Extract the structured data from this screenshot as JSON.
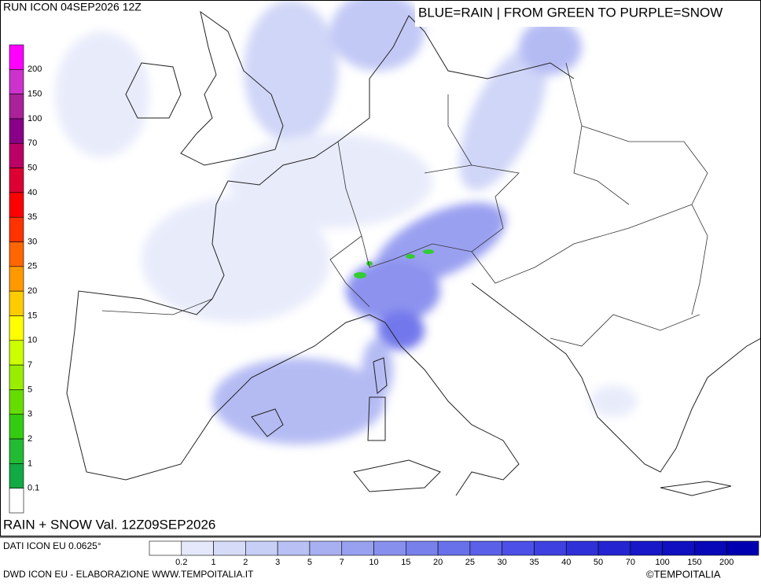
{
  "header": {
    "run": "RUN ICON 04SEP2026 12Z",
    "legend_title": "BLUE=RAIN | FROM GREEN TO PURPLE=SNOW",
    "field": "RAIN + SNOW Val. 12Z09SEP2026"
  },
  "snow_scale": {
    "labels": [
      200,
      150,
      100,
      70,
      50,
      40,
      35,
      30,
      25,
      20,
      15,
      10,
      7,
      5,
      3,
      2,
      1,
      0.1
    ],
    "colors": [
      "#ff00ff",
      "#cc33cc",
      "#aa2299",
      "#880088",
      "#bb0066",
      "#dd0033",
      "#ff0000",
      "#ff3300",
      "#ff6600",
      "#ff9900",
      "#ffcc00",
      "#ffff00",
      "#ccff00",
      "#99ee00",
      "#66dd00",
      "#33cc11",
      "#22bb33",
      "#11aa44",
      "#ffffff"
    ]
  },
  "rain_scale": {
    "labels": [
      0.2,
      1,
      2,
      3,
      5,
      7,
      10,
      15,
      20,
      25,
      30,
      35,
      40,
      50,
      70,
      100,
      150,
      200
    ],
    "colors": [
      "#ffffff",
      "#e4e8fa",
      "#d6dcf8",
      "#c8cff6",
      "#b8c0f4",
      "#a8b0f2",
      "#98a0f0",
      "#8890ee",
      "#7880ec",
      "#6870ea",
      "#5a60e8",
      "#4c50e6",
      "#3e40e0",
      "#3030d8",
      "#2424d0",
      "#1818c8",
      "#1010c0",
      "#0808b8",
      "#0000b0"
    ]
  },
  "footer": {
    "data_source": "DATI ICON EU 0.0625°",
    "credit": "DWD ICON EU - ELABORAZIONE WWW.TEMPOITALIA.IT",
    "copyright": "©TEMPOITALIA"
  }
}
